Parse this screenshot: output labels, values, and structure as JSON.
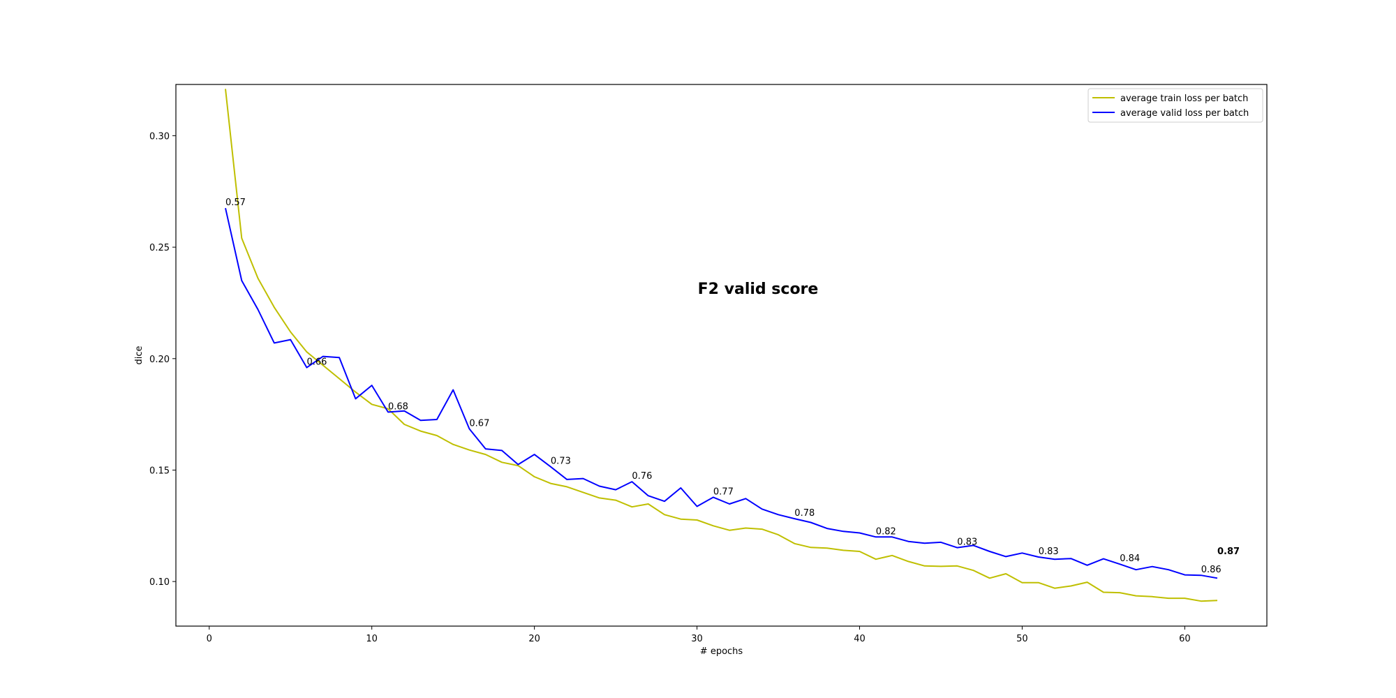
{
  "chart_data": {
    "type": "line",
    "title": "F2 valid score",
    "xlabel": "# epochs",
    "ylabel": "dice",
    "xlim": [
      -2.05,
      65.05
    ],
    "ylim": [
      0.08,
      0.323
    ],
    "xticks": [
      0,
      10,
      20,
      30,
      40,
      50,
      60
    ],
    "yticks": [
      0.1,
      0.15,
      0.2,
      0.25,
      0.3
    ],
    "ytick_labels": [
      "0.10",
      "0.15",
      "0.20",
      "0.25",
      "0.30"
    ],
    "grid": false,
    "legend_position": "top-right",
    "series": [
      {
        "name": "average train loss per batch",
        "color": "#bfbf00",
        "x": [
          1,
          2,
          3,
          4,
          5,
          6,
          7,
          8,
          9,
          10,
          11,
          12,
          13,
          14,
          15,
          16,
          17,
          18,
          19,
          20,
          21,
          22,
          23,
          24,
          25,
          26,
          27,
          28,
          29,
          30,
          31,
          32,
          33,
          34,
          35,
          36,
          37,
          38,
          39,
          40,
          41,
          42,
          43,
          44,
          45,
          46,
          47,
          48,
          49,
          50,
          51,
          52,
          53,
          54,
          55,
          56,
          57,
          58,
          59,
          60,
          61,
          62
        ],
        "values": [
          0.321,
          0.254,
          0.236,
          0.223,
          0.212,
          0.203,
          0.197,
          0.191,
          0.185,
          0.1795,
          0.1775,
          0.1705,
          0.1675,
          0.1655,
          0.1615,
          0.159,
          0.157,
          0.1535,
          0.152,
          0.147,
          0.144,
          0.1425,
          0.14,
          0.1375,
          0.1365,
          0.1335,
          0.1348,
          0.13,
          0.128,
          0.1276,
          0.125,
          0.123,
          0.124,
          0.1235,
          0.121,
          0.117,
          0.1153,
          0.115,
          0.114,
          0.1135,
          0.11,
          0.1117,
          0.109,
          0.107,
          0.1068,
          0.107,
          0.105,
          0.1015,
          0.1035,
          0.0995,
          0.0995,
          0.097,
          0.098,
          0.0997,
          0.0952,
          0.095,
          0.0936,
          0.0932,
          0.0925,
          0.0925,
          0.0912,
          0.0915
        ]
      },
      {
        "name": "average valid loss per batch",
        "color": "#0000ff",
        "x": [
          1,
          2,
          3,
          4,
          5,
          6,
          7,
          8,
          9,
          10,
          11,
          12,
          13,
          14,
          15,
          16,
          17,
          18,
          19,
          20,
          21,
          22,
          23,
          24,
          25,
          26,
          27,
          28,
          29,
          30,
          31,
          32,
          33,
          34,
          35,
          36,
          37,
          38,
          39,
          40,
          41,
          42,
          43,
          44,
          45,
          46,
          47,
          48,
          49,
          50,
          51,
          52,
          53,
          54,
          55,
          56,
          57,
          58,
          59,
          60,
          61,
          62
        ],
        "values": [
          0.2675,
          0.235,
          0.222,
          0.207,
          0.2085,
          0.196,
          0.201,
          0.2005,
          0.182,
          0.188,
          0.176,
          0.1765,
          0.1723,
          0.1727,
          0.186,
          0.1685,
          0.1595,
          0.1588,
          0.1525,
          0.157,
          0.1515,
          0.1458,
          0.1462,
          0.1428,
          0.1412,
          0.1448,
          0.1385,
          0.136,
          0.142,
          0.1337,
          0.1378,
          0.1348,
          0.1372,
          0.1325,
          0.13,
          0.1282,
          0.1265,
          0.1238,
          0.1225,
          0.1218,
          0.12,
          0.12,
          0.118,
          0.1172,
          0.1176,
          0.1152,
          0.1162,
          0.1135,
          0.1112,
          0.1128,
          0.111,
          0.11,
          0.1103,
          0.1073,
          0.1102,
          0.1078,
          0.1053,
          0.1067,
          0.1053,
          0.103,
          0.1028,
          0.1015
        ]
      }
    ],
    "annotations": [
      {
        "x": 1,
        "y": 0.2675,
        "text": "0.57",
        "bold": false
      },
      {
        "x": 6,
        "y": 0.196,
        "text": "0.66",
        "bold": false
      },
      {
        "x": 11,
        "y": 0.176,
        "text": "0.68",
        "bold": false
      },
      {
        "x": 16,
        "y": 0.1685,
        "text": "0.67",
        "bold": false
      },
      {
        "x": 21,
        "y": 0.1515,
        "text": "0.73",
        "bold": false
      },
      {
        "x": 26,
        "y": 0.1448,
        "text": "0.76",
        "bold": false
      },
      {
        "x": 31,
        "y": 0.1378,
        "text": "0.77",
        "bold": false
      },
      {
        "x": 36,
        "y": 0.1282,
        "text": "0.78",
        "bold": false
      },
      {
        "x": 41,
        "y": 0.12,
        "text": "0.82",
        "bold": false
      },
      {
        "x": 46,
        "y": 0.1152,
        "text": "0.83",
        "bold": false
      },
      {
        "x": 51,
        "y": 0.111,
        "text": "0.83",
        "bold": false
      },
      {
        "x": 56,
        "y": 0.1078,
        "text": "0.84",
        "bold": false
      },
      {
        "x": 61,
        "y": 0.1028,
        "text": "0.86",
        "bold": false
      },
      {
        "x": 62,
        "y": 0.111,
        "text": "0.87",
        "bold": true
      }
    ]
  }
}
